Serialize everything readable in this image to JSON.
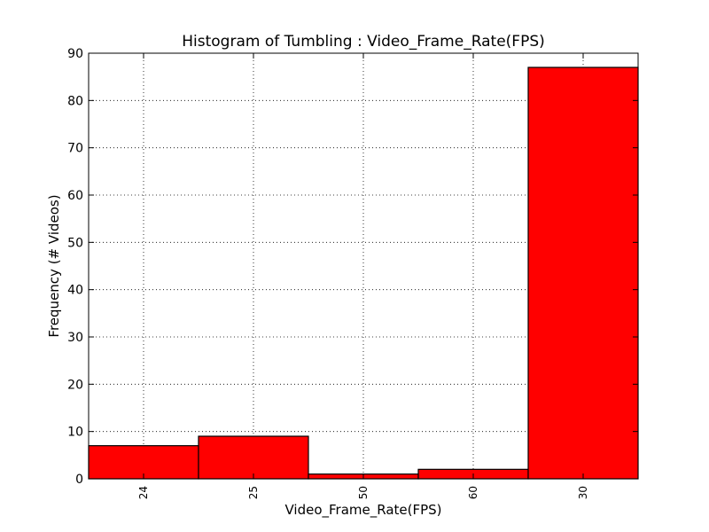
{
  "chart_data": {
    "type": "bar",
    "title": "Histogram of Tumbling : Video_Frame_Rate(FPS)",
    "xlabel": "Video_Frame_Rate(FPS)",
    "ylabel": "Frequency (# Videos)",
    "categories": [
      "24",
      "25",
      "50",
      "60",
      "30"
    ],
    "values": [
      7,
      9,
      1,
      2,
      87
    ],
    "ylim": [
      0,
      90
    ],
    "yticks": [
      0,
      10,
      20,
      30,
      40,
      50,
      60,
      70,
      80,
      90
    ],
    "grid": true,
    "bar_color": "#ff0000",
    "edge_color": "#000000"
  }
}
